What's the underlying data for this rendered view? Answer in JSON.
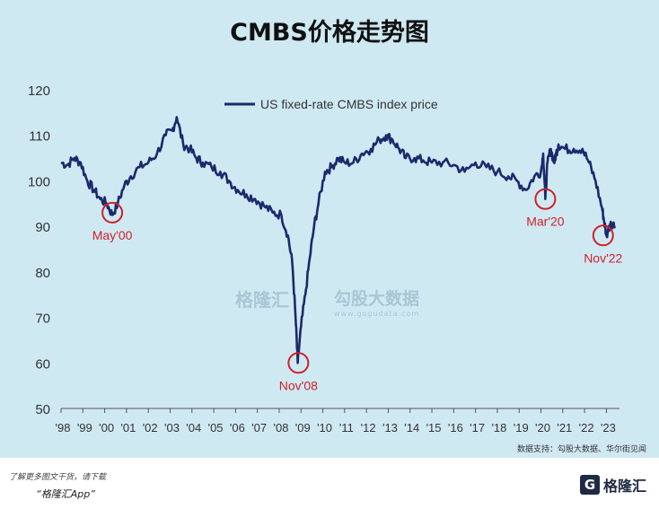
{
  "title": "CMBS价格走势图",
  "source": "数据支持：勾股大数据、华尔街见闻",
  "watermark": {
    "brand": "格隆汇",
    "brand2": "勾股大数据",
    "brand2_url": "www.gogudata.com"
  },
  "footer": {
    "note": "了解更多图文干货，请下载",
    "app": "“格隆汇App”",
    "logo_letter": "G",
    "logo_text": "格隆汇"
  },
  "colors": {
    "line": "#1a2a6c",
    "annotation": "#d0202a",
    "panel_bg": "#cfe9f3"
  },
  "chart_data": {
    "type": "line",
    "legend": "US fixed-rate CMBS index price",
    "ylim": [
      50,
      120
    ],
    "yticks": [
      50,
      60,
      70,
      80,
      90,
      100,
      110,
      120
    ],
    "xlim": [
      1998,
      2023.6
    ],
    "xticks": [
      "'98",
      "'99",
      "'00",
      "'01",
      "'02",
      "'03",
      "'04",
      "'05",
      "'06",
      "'07",
      "'08",
      "'09",
      "'10",
      "'11",
      "'12",
      "'13",
      "'14",
      "'15",
      "'16",
      "'17",
      "'18",
      "'19",
      "'20",
      "'21",
      "'22",
      "'23"
    ],
    "series": [
      {
        "name": "US fixed-rate CMBS index price",
        "x": [
          1998.0,
          1998.3,
          1998.6,
          1998.9,
          1999.2,
          1999.5,
          1999.8,
          2000.1,
          2000.35,
          2000.6,
          2000.9,
          2001.2,
          2001.6,
          2002.0,
          2002.4,
          2002.8,
          2003.1,
          2003.3,
          2003.6,
          2003.9,
          2004.2,
          2004.5,
          2004.9,
          2005.3,
          2005.7,
          2006.1,
          2006.5,
          2006.9,
          2007.3,
          2007.7,
          2008.1,
          2008.4,
          2008.6,
          2008.75,
          2008.85,
          2009.0,
          2009.2,
          2009.4,
          2009.6,
          2009.8,
          2010.1,
          2010.4,
          2010.7,
          2011.0,
          2011.4,
          2011.8,
          2012.2,
          2012.6,
          2012.9,
          2013.2,
          2013.5,
          2013.8,
          2014.2,
          2014.6,
          2015.0,
          2015.5,
          2016.0,
          2016.5,
          2017.0,
          2017.5,
          2018.0,
          2018.5,
          2018.9,
          2019.3,
          2019.7,
          2020.0,
          2020.1,
          2020.2,
          2020.3,
          2020.45,
          2020.6,
          2020.7,
          2020.8,
          2021.1,
          2021.5,
          2021.9,
          2022.2,
          2022.5,
          2022.8,
          2022.9,
          2023.0,
          2023.2,
          2023.4
        ],
        "values": [
          104,
          103.5,
          105,
          104,
          100,
          98,
          96,
          95,
          92.5,
          95,
          99,
          101,
          103,
          104,
          106,
          110,
          111,
          114,
          108,
          107,
          105,
          104,
          103,
          102,
          100,
          98,
          97,
          96,
          94.5,
          93,
          92.5,
          88,
          82,
          70,
          60,
          68,
          75,
          83,
          90,
          95,
          102,
          103,
          105,
          104,
          104,
          106,
          107,
          109,
          110,
          109,
          107,
          105,
          105,
          104.5,
          104,
          104,
          103.5,
          102,
          104,
          103,
          102,
          101,
          100,
          98,
          101,
          102,
          106,
          96,
          104,
          107,
          104,
          106,
          108,
          107,
          107,
          107,
          104,
          100,
          94,
          91,
          88,
          91,
          90
        ]
      }
    ],
    "annotations": [
      {
        "label": "May'00",
        "x": 2000.35,
        "y": 93
      },
      {
        "label": "Nov'08",
        "x": 2008.88,
        "y": 60
      },
      {
        "label": "Mar'20",
        "x": 2020.2,
        "y": 96
      },
      {
        "label": "Nov'22",
        "x": 2022.85,
        "y": 88
      }
    ]
  }
}
